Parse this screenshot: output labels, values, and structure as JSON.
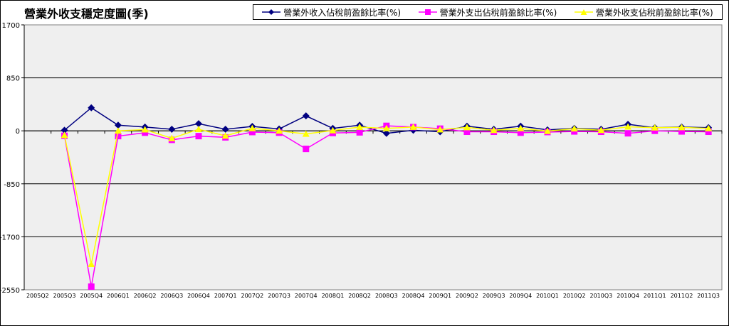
{
  "chart_data": {
    "type": "line",
    "title": "營業外收支穩定度圖(季)",
    "categories": [
      "2005Q2",
      "2005Q3",
      "2005Q4",
      "2006Q1",
      "2006Q2",
      "2006Q3",
      "2006Q4",
      "2007Q1",
      "2007Q2",
      "2007Q3",
      "2007Q4",
      "2008Q1",
      "2008Q2",
      "2008Q3",
      "2008Q4",
      "2009Q1",
      "2009Q2",
      "2009Q3",
      "2009Q4",
      "2010Q1",
      "2010Q2",
      "2010Q3",
      "2010Q4",
      "2011Q1",
      "2011Q2",
      "2011Q3"
    ],
    "ylim": [
      -2550,
      1700
    ],
    "yticks": [
      1700,
      850,
      0,
      -850,
      -1700,
      -2550
    ],
    "ytick_labels": [
      "1700",
      "850",
      "0",
      "-850",
      "-1700",
      "-2550"
    ],
    "grid": true,
    "legend_position": "top",
    "series": [
      {
        "name": "營業外收入佔稅前盈餘比率(%)",
        "color": "#000080",
        "marker": "diamond",
        "values": [
          null,
          10,
          370,
          90,
          60,
          25,
          115,
          25,
          70,
          30,
          240,
          40,
          90,
          -40,
          10,
          -15,
          75,
          25,
          75,
          15,
          40,
          25,
          105,
          50,
          60,
          50
        ]
      },
      {
        "name": "營業外支出佔稅前盈餘比率(%)",
        "color": "#ff00ff",
        "marker": "square",
        "values": [
          null,
          -80,
          -2500,
          -85,
          -30,
          -145,
          -85,
          -105,
          -20,
          -30,
          -290,
          -35,
          -25,
          80,
          60,
          35,
          -15,
          -15,
          -30,
          -20,
          -10,
          -15,
          -40,
          0,
          -10,
          -15
        ]
      },
      {
        "name": "營業外收支佔稅前盈餘比率(%)",
        "color": "#ffff00",
        "marker": "triangle",
        "values": [
          null,
          -70,
          -2140,
          0,
          20,
          -120,
          25,
          -80,
          40,
          0,
          -50,
          5,
          60,
          40,
          60,
          20,
          55,
          10,
          40,
          -5,
          35,
          10,
          65,
          50,
          55,
          40
        ]
      }
    ]
  }
}
